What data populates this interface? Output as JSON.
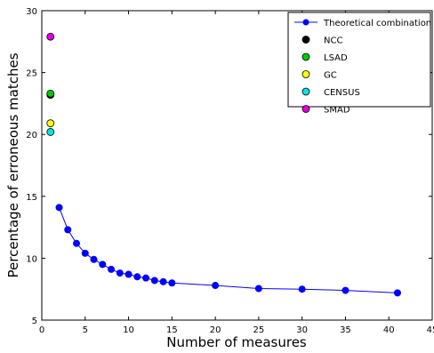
{
  "chart_data": {
    "type": "line",
    "title": "",
    "xlabel": "Number of measures",
    "ylabel": "Percentage of erroneous matches",
    "xlim": [
      0,
      45
    ],
    "ylim": [
      5,
      30
    ],
    "x_ticks": [
      0,
      5,
      10,
      15,
      20,
      25,
      30,
      35,
      40,
      45
    ],
    "y_ticks": [
      5,
      10,
      15,
      20,
      25,
      30
    ],
    "grid": false,
    "legend_position": "top-right",
    "series": [
      {
        "name": "Theoretical combination",
        "kind": "line-marker",
        "color": "#0000ff",
        "x": [
          2,
          3,
          4,
          5,
          6,
          7,
          8,
          9,
          10,
          11,
          12,
          13,
          14,
          15,
          20,
          25,
          30,
          35,
          41
        ],
        "y": [
          14.1,
          12.3,
          11.2,
          10.4,
          9.9,
          9.5,
          9.1,
          8.8,
          8.7,
          8.5,
          8.4,
          8.2,
          8.1,
          8.0,
          7.8,
          7.55,
          7.5,
          7.4,
          7.2
        ]
      },
      {
        "name": "NCC",
        "kind": "point",
        "color": "#000000",
        "x": [
          1
        ],
        "y": [
          23.2
        ]
      },
      {
        "name": "LSAD",
        "kind": "point",
        "color": "#00cc00",
        "x": [
          1
        ],
        "y": [
          23.3
        ]
      },
      {
        "name": "GC",
        "kind": "point",
        "color": "#ffff00",
        "x": [
          1
        ],
        "y": [
          20.9
        ]
      },
      {
        "name": "CENSUS",
        "kind": "point",
        "color": "#00e5e5",
        "x": [
          1
        ],
        "y": [
          20.2
        ]
      },
      {
        "name": "SMAD",
        "kind": "point",
        "color": "#e000e0",
        "x": [
          1
        ],
        "y": [
          27.9
        ]
      }
    ]
  }
}
